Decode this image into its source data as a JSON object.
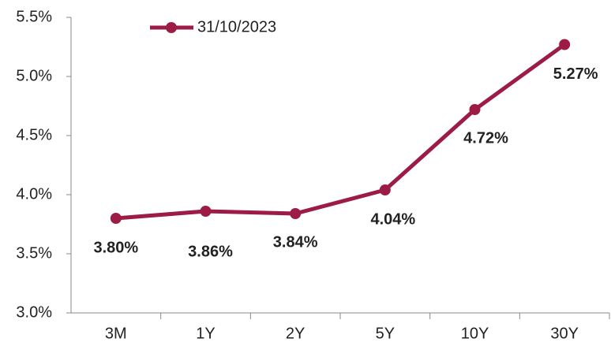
{
  "chart_data": {
    "type": "line",
    "categories": [
      "3M",
      "1Y",
      "2Y",
      "5Y",
      "10Y",
      "30Y"
    ],
    "series": [
      {
        "name": "31/10/2023",
        "color": "#9c1c45",
        "values": [
          3.8,
          3.86,
          3.84,
          4.04,
          4.72,
          5.27
        ],
        "value_labels": [
          "3.80%",
          "3.86%",
          "3.84%",
          "4.04%",
          "4.72%",
          "5.27%"
        ]
      }
    ],
    "ylim": [
      3.0,
      5.5
    ],
    "yticks": [
      {
        "value": 3.0,
        "label": "3.0%"
      },
      {
        "value": 3.5,
        "label": "3.5%"
      },
      {
        "value": 4.0,
        "label": "4.0%"
      },
      {
        "value": 4.5,
        "label": "4.5%"
      },
      {
        "value": 5.0,
        "label": "5.0%"
      },
      {
        "value": 5.5,
        "label": "5.5%"
      }
    ],
    "grid": false,
    "legend": "top"
  }
}
